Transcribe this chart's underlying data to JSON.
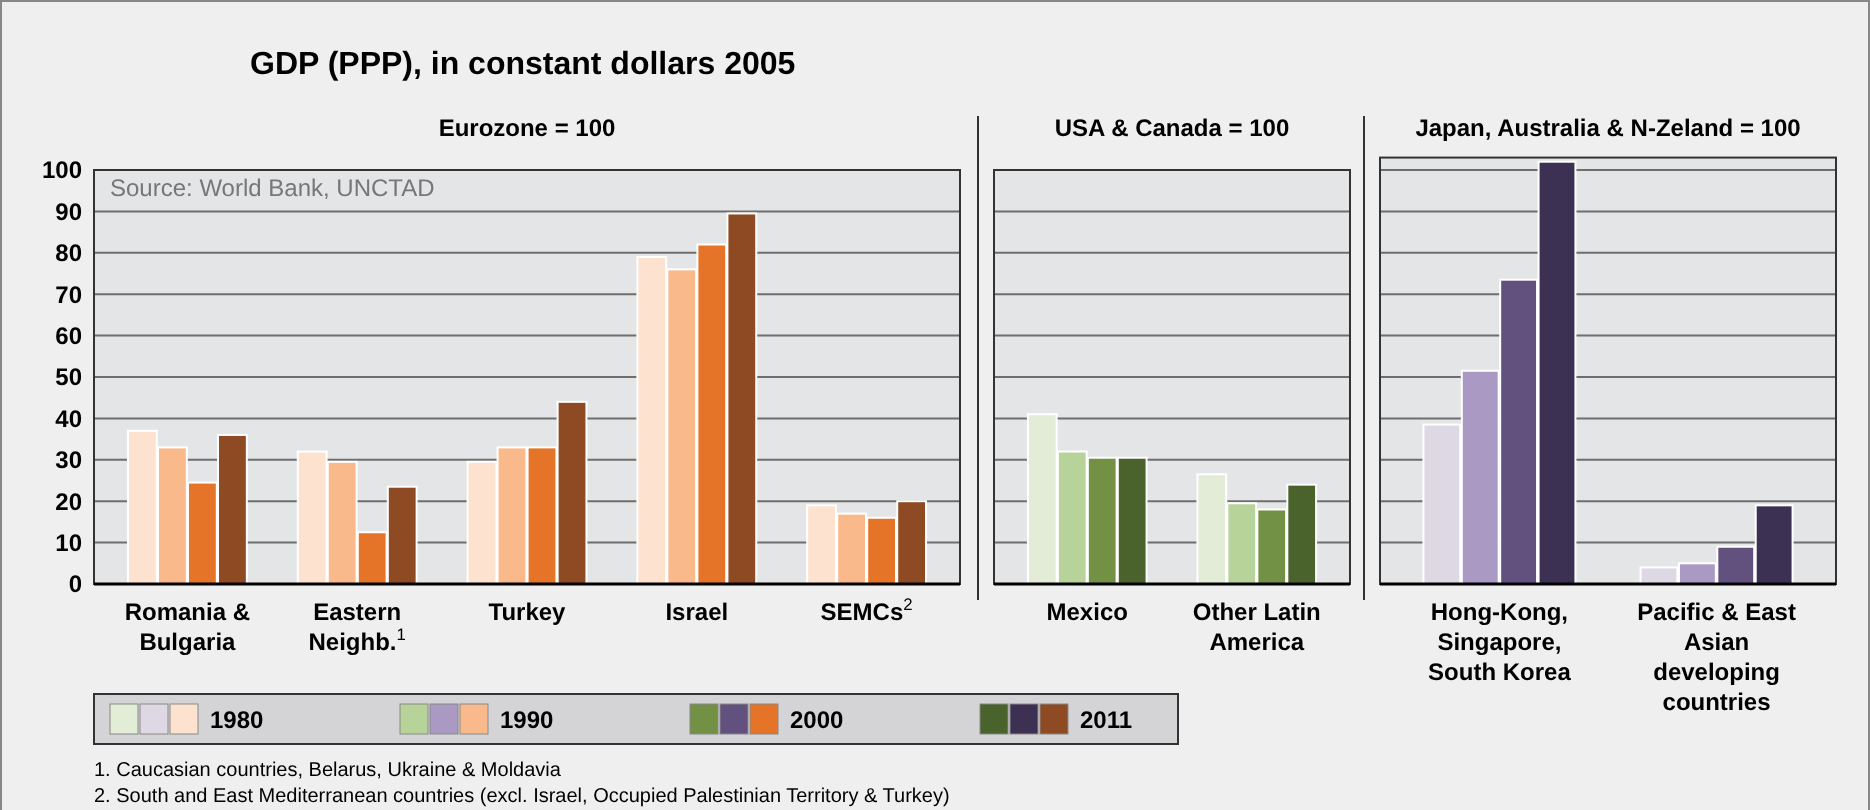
{
  "chart_data": [
    {
      "type": "bar",
      "title": "GDP (PPP), in constant dollars 2005",
      "subtitle": "Eurozone = 100",
      "categories": [
        "Romania & Bulgaria",
        "Eastern Neighb.$^{1}$",
        "Turkey",
        "Israel",
        "SEMCs$^{2}$"
      ],
      "series": [
        {
          "name": "1980",
          "color": "#fde2cf",
          "values": [
            37,
            32,
            29.5,
            79,
            19
          ]
        },
        {
          "name": "1990",
          "color": "#f9b98a",
          "values": [
            33,
            29.5,
            33,
            76,
            17
          ]
        },
        {
          "name": "2000",
          "color": "#e57428",
          "values": [
            24.5,
            12.5,
            33,
            82,
            16
          ]
        },
        {
          "name": "2011",
          "color": "#8e4a22",
          "values": [
            36,
            23.5,
            44,
            89.5,
            20
          ]
        }
      ],
      "ylim": [
        0,
        100
      ],
      "yticks": [
        0,
        10,
        20,
        30,
        40,
        50,
        60,
        70,
        80,
        90,
        100
      ],
      "grid": "y",
      "legend": "bottom",
      "annotations": [
        "Source: World Bank, UNCTAD",
        "1. Caucasian countries, Belarus, Ukraine & Moldavia",
        "2. South and East Mediterranean countries (excl. Israel, Occupied Palestinian Territory & Turkey)"
      ]
    },
    {
      "type": "bar",
      "subtitle": "USA & Canada = 100",
      "categories": [
        "Mexico",
        "Other Latin America"
      ],
      "series": [
        {
          "color": "#e2ecd7",
          "values": [
            41,
            26.5
          ]
        },
        {
          "color": "#b7d39a",
          "values": [
            32,
            19.5
          ]
        },
        {
          "color": "#739144",
          "values": [
            30.5,
            18
          ]
        },
        {
          "color": "#4a632d",
          "values": [
            30.5,
            24
          ]
        }
      ],
      "ylim": [
        0,
        100
      ],
      "yticks": [
        0,
        10,
        20,
        30,
        40,
        50,
        60,
        70,
        80,
        90,
        100
      ],
      "grid": "y",
      "tick_labels": "x"
    },
    {
      "type": "bar",
      "subtitle": "Japan, Australia & N-Zeland = 100",
      "categories": [
        "Hong-Kong, Singapore, South Korea",
        "Pacific & East Asian developing countries"
      ],
      "series": [
        {
          "color": "#ded8e5",
          "values": [
            38.5,
            4
          ]
        },
        {
          "color": "#a999c3",
          "values": [
            51.5,
            5
          ]
        },
        {
          "color": "#62507e",
          "values": [
            73.5,
            9
          ]
        },
        {
          "color": "#3c3152",
          "values": [
            102,
            19
          ]
        }
      ],
      "ylim": [
        0,
        103
      ],
      "yticks": [
        0,
        10,
        20,
        30,
        40,
        50,
        60,
        70,
        80,
        90,
        100
      ],
      "grid": "y",
      "tick_labels": "x"
    }
  ]
}
